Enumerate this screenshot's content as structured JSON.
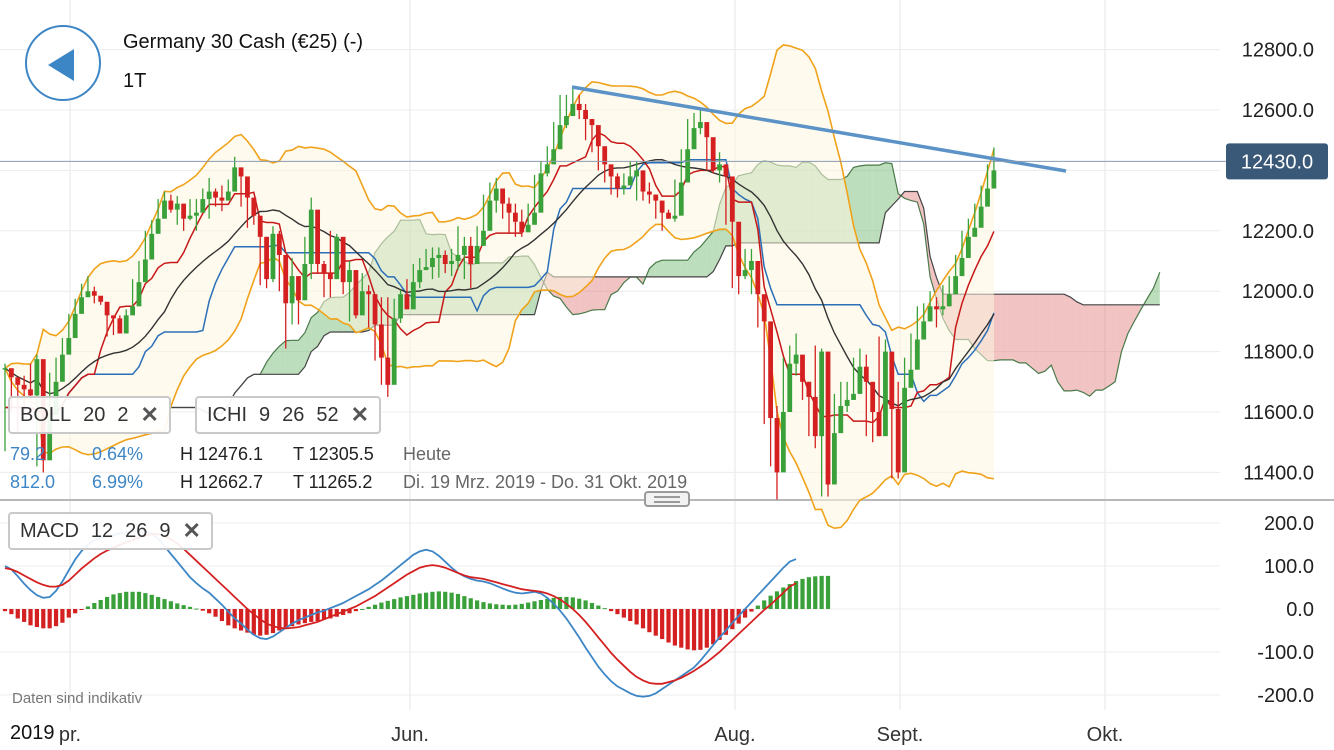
{
  "header": {
    "title": "Germany 30 Cash (€25) (-)",
    "period": "1T"
  },
  "colors": {
    "up": "#3aa13a",
    "down": "#d42020",
    "ichimoku_green": "#6ab56a",
    "ichimoku_red": "#e07a7a",
    "bollinger": "#f0a21a",
    "trendline": "#5b93c7",
    "price_badge": "#3a5878"
  },
  "indicators": {
    "boll": {
      "name": "BOLL",
      "p1": "20",
      "p2": "2",
      "close": "✕"
    },
    "ichi": {
      "name": "ICHI",
      "p1": "9",
      "p2": "26",
      "p3": "52",
      "close": "✕"
    },
    "macd": {
      "name": "MACD",
      "p1": "12",
      "p2": "26",
      "p3": "9",
      "close": "✕"
    }
  },
  "stats": {
    "row1": {
      "a": "79.2",
      "b": "0.64%",
      "h": "H 12476.1",
      "t": "T 12305.5",
      "note": "Heute"
    },
    "row2": {
      "a": "812.0",
      "b": "6.99%",
      "h": "H 12662.7",
      "t": "T 11265.2",
      "note": "Di. 19 Mrz. 2019 - Do. 31 Okt. 2019"
    }
  },
  "footer": {
    "disclaimer": "Daten sind indikativ",
    "year": "2019"
  },
  "chart_data": {
    "type": "candlestick",
    "current_price": "12430.0",
    "price_axis": {
      "ticks": [
        "12800.0",
        "12600.0",
        "12400.0",
        "12200.0",
        "12000.0",
        "11800.0",
        "11600.0",
        "11400.0"
      ],
      "ylim": [
        11325,
        12980
      ]
    },
    "macd_axis": {
      "ticks": [
        "200.0",
        "100.0",
        "0.0",
        "-100.0",
        "-200.0"
      ],
      "ylim": [
        -210,
        240
      ]
    },
    "x_ticks": [
      {
        "label": "pr.",
        "date": "2019-05-01"
      },
      {
        "label": "Jun.",
        "date": "2019-06-03"
      },
      {
        "label": "Aug.",
        "date": "2019-08-01"
      },
      {
        "label": "Sept.",
        "date": "2019-09-02"
      },
      {
        "label": "Okt.",
        "date": "2019-10-01"
      }
    ],
    "date_range": [
      "2019-03-19",
      "2019-10-31"
    ],
    "candles": [
      [
        11745,
        11760,
        11470
      ],
      [
        11715,
        11740,
        11600
      ],
      [
        11690,
        11710,
        11530
      ],
      [
        11675,
        11720,
        11590
      ],
      [
        11655,
        11760,
        11640
      ],
      [
        11775,
        11790,
        11420
      ],
      [
        11440,
        11640,
        11400
      ],
      [
        11590,
        11730,
        11560
      ],
      [
        11700,
        11780,
        11680
      ],
      [
        11790,
        11845,
        11770
      ],
      [
        11845,
        11925,
        11845
      ],
      [
        11925,
        11975,
        11885
      ],
      [
        11980,
        12025,
        11945
      ],
      [
        12000,
        12050,
        11995
      ],
      [
        11985,
        12015,
        11960
      ],
      [
        11965,
        11980,
        11955
      ],
      [
        11920,
        11960,
        11850
      ],
      [
        11910,
        11915,
        11855
      ],
      [
        11860,
        11920,
        11860
      ],
      [
        11920,
        11940,
        11860
      ],
      [
        11950,
        12040,
        11925
      ],
      [
        12030,
        12100,
        12020
      ],
      [
        12105,
        12200,
        12105
      ],
      [
        12190,
        12235,
        12175
      ],
      [
        12240,
        12305,
        12215
      ],
      [
        12300,
        12330,
        12245
      ],
      [
        12270,
        12320,
        12260
      ],
      [
        12290,
        12315,
        12220
      ],
      [
        12240,
        12255,
        12200
      ],
      [
        12250,
        12305,
        12235
      ],
      [
        12260,
        12305,
        12200
      ],
      [
        12305,
        12340,
        12285
      ],
      [
        12330,
        12375,
        12240
      ],
      [
        12310,
        12340,
        12280
      ],
      [
        12300,
        12350,
        12265
      ],
      [
        12330,
        12370,
        12310
      ],
      [
        12410,
        12445,
        12340
      ],
      [
        12380,
        12390,
        12280
      ],
      [
        12310,
        12330,
        12210
      ],
      [
        12250,
        12280,
        12220
      ],
      [
        12180,
        12220,
        12020
      ],
      [
        12040,
        12180,
        12010
      ],
      [
        12190,
        12215,
        12030
      ],
      [
        12120,
        12200,
        12000
      ],
      [
        11960,
        12020,
        11810
      ],
      [
        12050,
        12110,
        11890
      ],
      [
        11970,
        12050,
        11890
      ],
      [
        12090,
        12180,
        12040
      ],
      [
        12270,
        12310,
        12040
      ],
      [
        12090,
        12220,
        12060
      ],
      [
        12060,
        12100,
        11980
      ],
      [
        12040,
        12200,
        11980
      ],
      [
        12180,
        12190,
        12040
      ],
      [
        12030,
        12160,
        11990
      ],
      [
        12070,
        12100,
        11900
      ],
      [
        11920,
        12050,
        11910
      ],
      [
        12000,
        12060,
        11960
      ],
      [
        11990,
        12020,
        11880
      ],
      [
        11890,
        11990,
        11770
      ],
      [
        11780,
        11980,
        11690
      ],
      [
        11690,
        11980,
        11650
      ],
      [
        11910,
        11975,
        11850
      ],
      [
        11990,
        12005,
        11895
      ],
      [
        11940,
        12040,
        11940
      ],
      [
        12030,
        12090,
        12020
      ],
      [
        12070,
        12110,
        12010
      ],
      [
        12080,
        12140,
        12070
      ],
      [
        12110,
        12145,
        12040
      ],
      [
        12120,
        12145,
        12045
      ],
      [
        12090,
        12135,
        12060
      ],
      [
        12100,
        12140,
        12050
      ],
      [
        12120,
        12215,
        12070
      ],
      [
        12150,
        12180,
        12040
      ],
      [
        12090,
        12180,
        12010
      ],
      [
        12150,
        12215,
        12120
      ],
      [
        12200,
        12320,
        12170
      ],
      [
        12300,
        12360,
        12250
      ],
      [
        12340,
        12375,
        12260
      ],
      [
        12290,
        12340,
        12240
      ],
      [
        12260,
        12310,
        12190
      ],
      [
        12230,
        12290,
        12180
      ],
      [
        12195,
        12270,
        12180
      ],
      [
        12220,
        12290,
        12200
      ],
      [
        12260,
        12385,
        12220
      ],
      [
        12390,
        12430,
        12330
      ],
      [
        12420,
        12480,
        12380
      ],
      [
        12470,
        12560,
        12440
      ],
      [
        12550,
        12650,
        12500
      ],
      [
        12580,
        12650,
        12540
      ],
      [
        12620,
        12670,
        12580
      ],
      [
        12600,
        12650,
        12570
      ],
      [
        12570,
        12620,
        12500
      ],
      [
        12550,
        12570,
        12460
      ],
      [
        12480,
        12520,
        12400
      ],
      [
        12420,
        12460,
        12360
      ],
      [
        12380,
        12420,
        12320
      ],
      [
        12340,
        12390,
        12310
      ],
      [
        12350,
        12390,
        12320
      ],
      [
        12380,
        12430,
        12350
      ],
      [
        12400,
        12430,
        12300
      ],
      [
        12330,
        12350,
        12300
      ],
      [
        12320,
        12360,
        12290
      ],
      [
        12300,
        12320,
        12240
      ],
      [
        12260,
        12300,
        12200
      ],
      [
        12240,
        12270,
        12240
      ],
      [
        12250,
        12370,
        12230
      ],
      [
        12360,
        12470,
        12340
      ],
      [
        12470,
        12570,
        12450
      ],
      [
        12540,
        12590,
        12500
      ],
      [
        12560,
        12600,
        12520
      ],
      [
        12510,
        12530,
        12400
      ],
      [
        12400,
        12470,
        12390
      ],
      [
        12420,
        12460,
        12360
      ],
      [
        12380,
        12420,
        12220
      ],
      [
        12230,
        12260,
        12010
      ],
      [
        12050,
        12110,
        11990
      ],
      [
        12070,
        12140,
        12040
      ],
      [
        12100,
        12140,
        11990
      ],
      [
        11990,
        12020,
        11880
      ],
      [
        11900,
        11940,
        11560
      ],
      [
        11580,
        11640,
        11420
      ],
      [
        11400,
        11620,
        11310
      ],
      [
        11600,
        11780,
        11580
      ],
      [
        11760,
        11820,
        11700
      ],
      [
        11790,
        11860,
        11720
      ],
      [
        11700,
        11760,
        11640
      ],
      [
        11650,
        11700,
        11520
      ],
      [
        11520,
        11820,
        11480
      ],
      [
        11800,
        11810,
        11320
      ],
      [
        11360,
        11580,
        11320
      ],
      [
        11530,
        11660,
        11440
      ],
      [
        11620,
        11700,
        11570
      ],
      [
        11640,
        11700,
        11600
      ],
      [
        11660,
        11780,
        11640
      ],
      [
        11750,
        11810,
        11660
      ],
      [
        11700,
        11790,
        11520
      ],
      [
        11600,
        11640,
        11500
      ],
      [
        11520,
        11850,
        11520
      ],
      [
        11800,
        11840,
        11590
      ],
      [
        11610,
        11630,
        11380
      ],
      [
        11400,
        11700,
        11380
      ],
      [
        11680,
        11780,
        11640
      ],
      [
        11740,
        11860,
        11720
      ],
      [
        11840,
        11950,
        11800
      ],
      [
        11900,
        11960,
        11850
      ],
      [
        11950,
        12000,
        11900
      ],
      [
        11940,
        11980,
        11880
      ],
      [
        11950,
        12020,
        11920
      ],
      [
        11990,
        12050,
        11950
      ],
      [
        12050,
        12120,
        12020
      ],
      [
        12110,
        12200,
        12080
      ],
      [
        12180,
        12240,
        12130
      ],
      [
        12210,
        12290,
        12190
      ],
      [
        12280,
        12350,
        12240
      ],
      [
        12340,
        12420,
        12300
      ],
      [
        12400,
        12476,
        12350
      ]
    ],
    "macd_histogram": [
      -5,
      -12,
      -22,
      -30,
      -38,
      -42,
      -45,
      -45,
      -40,
      -32,
      -20,
      -10,
      -2,
      6,
      14,
      21,
      28,
      34,
      37,
      40,
      40,
      40,
      37,
      33,
      28,
      23,
      18,
      13,
      9,
      5,
      1,
      -4,
      -10,
      -18,
      -28,
      -38,
      -45,
      -50,
      -55,
      -60,
      -62,
      -60,
      -56,
      -50,
      -45,
      -40,
      -36,
      -33,
      -30,
      -28,
      -25,
      -22,
      -18,
      -14,
      -10,
      -5,
      0,
      5,
      10,
      15,
      19,
      23,
      27,
      30,
      33,
      36,
      38,
      40,
      41,
      40,
      38,
      35,
      30,
      25,
      20,
      16,
      13,
      11,
      10,
      9,
      10,
      12,
      15,
      18,
      21,
      24,
      26,
      28,
      28,
      27,
      24,
      20,
      14,
      8,
      2,
      -5,
      -12,
      -20,
      -28,
      -36,
      -45,
      -54,
      -62,
      -70,
      -78,
      -85,
      -90,
      -94,
      -96,
      -95,
      -90,
      -82,
      -72,
      -60,
      -47,
      -34,
      -20,
      -6,
      8,
      20,
      31,
      41,
      50,
      58,
      65,
      70,
      74,
      76,
      77,
      77
    ],
    "macd_line": [
      100,
      92,
      76,
      59,
      44,
      32,
      26,
      28,
      42,
      64,
      90,
      115,
      135,
      150,
      160,
      166,
      169,
      172,
      176,
      178,
      180,
      181,
      180,
      176,
      164,
      146,
      128,
      110,
      92,
      74,
      60,
      48,
      38,
      24,
      10,
      -6,
      -22,
      -34,
      -48,
      -60,
      -68,
      -70,
      -64,
      -54,
      -44,
      -34,
      -26,
      -20,
      -14,
      -8,
      -4,
      2,
      8,
      14,
      22,
      30,
      38,
      46,
      56,
      66,
      78,
      90,
      102,
      114,
      126,
      134,
      138,
      134,
      124,
      110,
      96,
      84,
      76,
      70,
      66,
      64,
      60,
      54,
      48,
      42,
      38,
      36,
      38,
      40,
      36,
      26,
      12,
      -4,
      -22,
      -44,
      -66,
      -90,
      -112,
      -134,
      -152,
      -168,
      -180,
      -188,
      -196,
      -202,
      -204,
      -202,
      -196,
      -186,
      -176,
      -166,
      -156,
      -146,
      -136,
      -120,
      -102,
      -84,
      -66,
      -50,
      -32,
      -16,
      0,
      16,
      32,
      48,
      64,
      80,
      96,
      110,
      116
    ],
    "macd_signal": [
      95,
      92,
      86,
      78,
      70,
      62,
      56,
      52,
      52,
      56,
      66,
      80,
      94,
      106,
      118,
      128,
      136,
      143,
      149,
      155,
      160,
      166,
      171,
      174,
      174,
      170,
      162,
      152,
      140,
      126,
      112,
      98,
      84,
      70,
      56,
      42,
      28,
      14,
      0,
      -12,
      -24,
      -34,
      -40,
      -44,
      -45,
      -44,
      -42,
      -38,
      -34,
      -30,
      -24,
      -18,
      -12,
      -6,
      0,
      6,
      14,
      22,
      30,
      40,
      50,
      60,
      70,
      80,
      88,
      96,
      100,
      102,
      100,
      96,
      90,
      84,
      78,
      74,
      72,
      70,
      66,
      62,
      58,
      54,
      50,
      46,
      44,
      42,
      40,
      36,
      30,
      22,
      12,
      0,
      -14,
      -30,
      -48,
      -66,
      -84,
      -102,
      -118,
      -132,
      -146,
      -158,
      -166,
      -172,
      -174,
      -174,
      -170,
      -166,
      -160,
      -152,
      -144,
      -134,
      -124,
      -112,
      -100,
      -86,
      -72,
      -58,
      -44,
      -30,
      -16,
      -2,
      10,
      24,
      38,
      52,
      60
    ]
  }
}
